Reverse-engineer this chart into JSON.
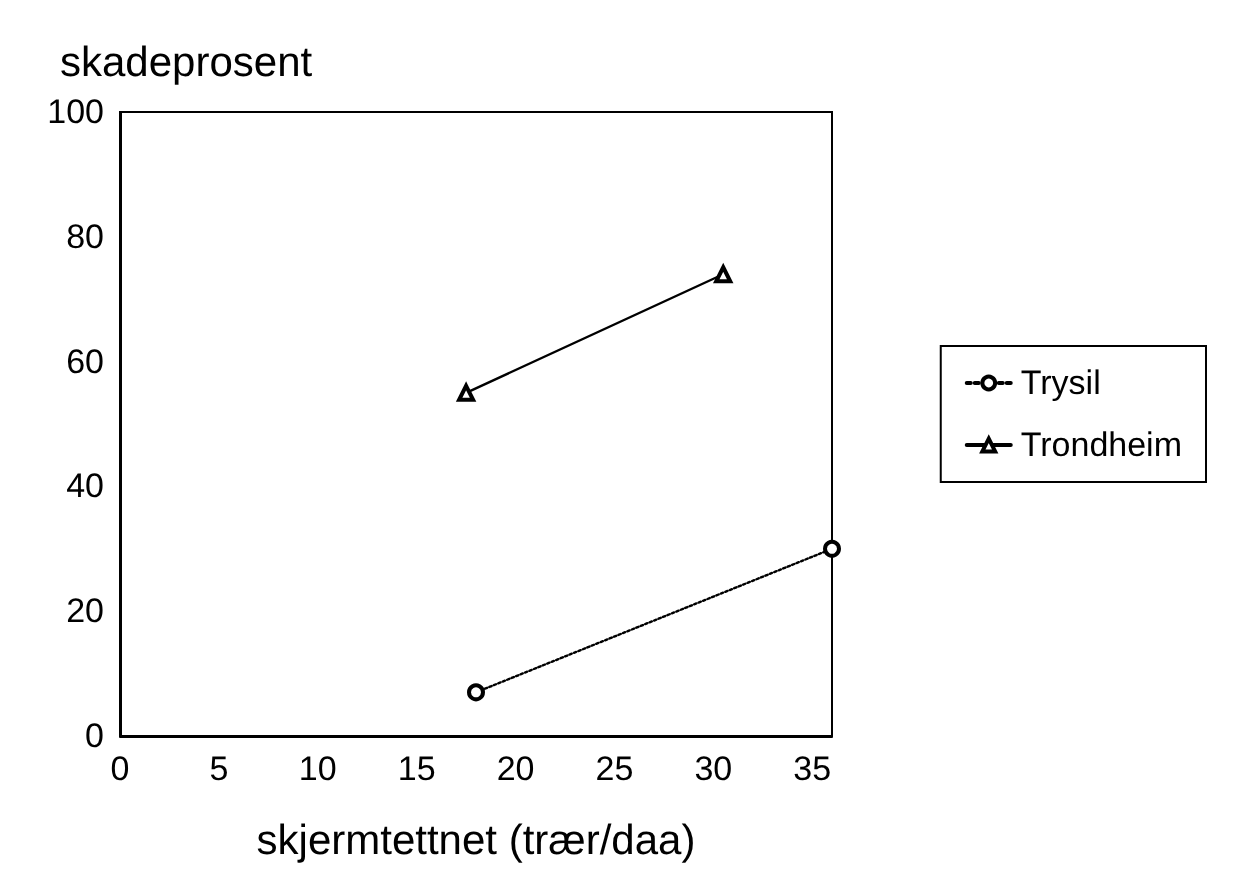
{
  "chart_data": {
    "type": "line",
    "xlabel": "skjermtettnet (trær/daa)",
    "ylabel": "skadeprosent",
    "series": [
      {
        "name": "Trysil",
        "color": "#000000",
        "marker": "circle",
        "line_style": "dotted",
        "x": [
          18,
          36
        ],
        "values": [
          7,
          30
        ]
      },
      {
        "name": "Trondheim",
        "color": "#000000",
        "marker": "triangle",
        "line_style": "solid",
        "x": [
          17.5,
          30.5
        ],
        "values": [
          55,
          74
        ]
      }
    ],
    "xlim": [
      0,
      36
    ],
    "xticks": [
      0,
      5,
      10,
      15,
      20,
      25,
      30,
      35
    ],
    "ylim": [
      0,
      100
    ],
    "yticks": [
      0,
      20,
      40,
      60,
      80,
      100
    ],
    "grid": false,
    "legend": "right"
  }
}
